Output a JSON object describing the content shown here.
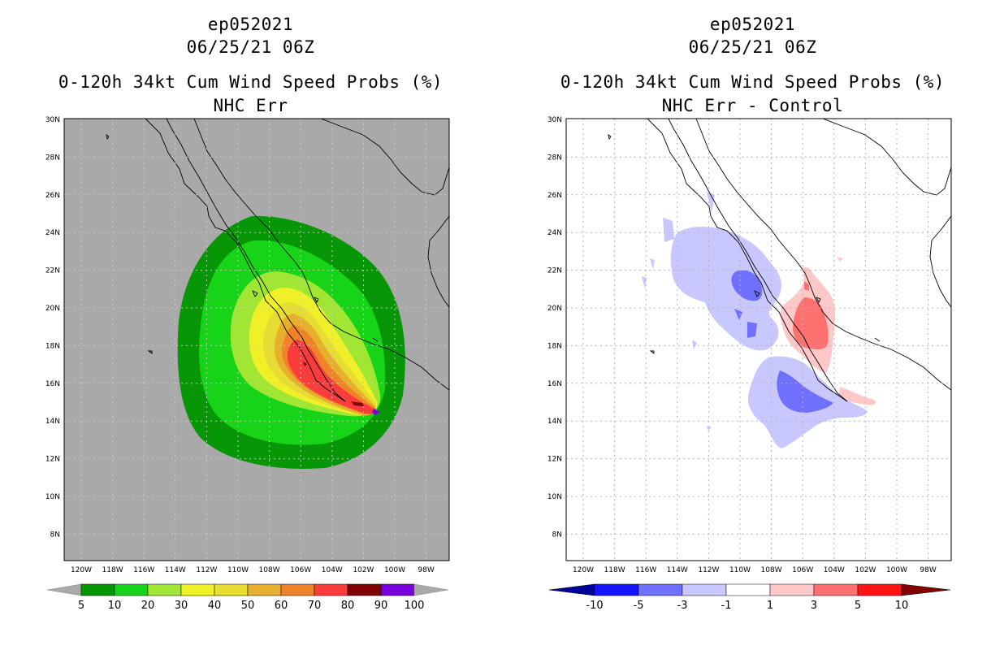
{
  "colors": {
    "land_mask": "#a9a9a9",
    "prob_fills": [
      "#069606",
      "#18d418",
      "#a0e632",
      "#f0f028",
      "#e6dc32",
      "#e6af2d",
      "#f08228",
      "#fa3c3c",
      "#820000",
      "#7800dc"
    ],
    "diff_fills": [
      "#00009b",
      "#1414ff",
      "#7070ff",
      "#c8c8ff",
      "#ffffff",
      "#ffc8c8",
      "#ff7070",
      "#ff1414",
      "#820000"
    ]
  },
  "left": {
    "storm_id": "ep052021",
    "datetime": "06/25/21 06Z",
    "product_title": "0-120h 34kt Cum Wind Speed Probs (%)",
    "subtitle": "NHC Err",
    "lat_labels": [
      "30N",
      "28N",
      "26N",
      "24N",
      "22N",
      "20N",
      "18N",
      "16N",
      "14N",
      "12N",
      "10N",
      "8N"
    ],
    "lon_labels": [
      "120W",
      "118W",
      "116W",
      "114W",
      "112W",
      "110W",
      "108W",
      "106W",
      "104W",
      "102W",
      "100W",
      "98W"
    ],
    "colorbar_labels": [
      "5",
      "10",
      "20",
      "30",
      "40",
      "50",
      "60",
      "70",
      "80",
      "90",
      "100"
    ]
  },
  "right": {
    "storm_id": "ep052021",
    "datetime": "06/25/21 06Z",
    "product_title": "0-120h 34kt Cum Wind Speed Probs (%)",
    "subtitle": "NHC Err - Control",
    "lat_labels": [
      "30N",
      "28N",
      "26N",
      "24N",
      "22N",
      "20N",
      "18N",
      "16N",
      "14N",
      "12N",
      "10N",
      "8N"
    ],
    "lon_labels": [
      "120W",
      "118W",
      "116W",
      "114W",
      "112W",
      "110W",
      "108W",
      "106W",
      "104W",
      "102W",
      "100W",
      "98W"
    ],
    "colorbar_labels": [
      "-10",
      "-5",
      "-3",
      "-1",
      "1",
      "3",
      "5",
      "10"
    ]
  }
}
